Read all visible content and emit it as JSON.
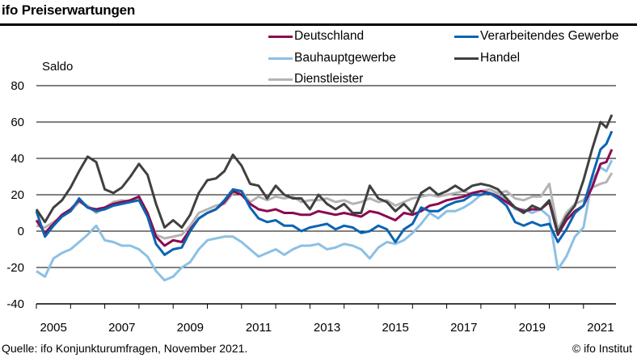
{
  "title": "ifo Preiserwartungen",
  "source": "Quelle: ifo Konjunkturumfragen, November 2021.",
  "copyright": "© ifo Institut",
  "chart_data": {
    "type": "line",
    "title": "ifo Preiserwartungen",
    "ylabel": "Saldo",
    "xlabel": "",
    "ylim": [
      -40,
      80
    ],
    "xlim": [
      2005.0,
      2021.9
    ],
    "yticks": [
      -40,
      -20,
      0,
      20,
      40,
      60,
      80
    ],
    "xtick_labels": [
      "2005",
      "2007",
      "2009",
      "2011",
      "2013",
      "2015",
      "2017",
      "2019",
      "2021"
    ],
    "grid": "horizontal",
    "legend_position": "top-right",
    "x": [
      2005.0,
      2005.25,
      2005.5,
      2005.75,
      2006.0,
      2006.25,
      2006.5,
      2006.75,
      2007.0,
      2007.25,
      2007.5,
      2007.75,
      2008.0,
      2008.25,
      2008.5,
      2008.75,
      2009.0,
      2009.25,
      2009.5,
      2009.75,
      2010.0,
      2010.25,
      2010.5,
      2010.75,
      2011.0,
      2011.25,
      2011.5,
      2011.75,
      2012.0,
      2012.25,
      2012.5,
      2012.75,
      2013.0,
      2013.25,
      2013.5,
      2013.75,
      2014.0,
      2014.25,
      2014.5,
      2014.75,
      2015.0,
      2015.25,
      2015.5,
      2015.75,
      2016.0,
      2016.25,
      2016.5,
      2016.75,
      2017.0,
      2017.25,
      2017.5,
      2017.75,
      2018.0,
      2018.25,
      2018.5,
      2018.75,
      2019.0,
      2019.25,
      2019.5,
      2019.75,
      2020.0,
      2020.25,
      2020.5,
      2020.75,
      2021.0,
      2021.25,
      2021.5,
      2021.67,
      2021.83
    ],
    "series": [
      {
        "name": "Deutschland",
        "color": "#8b0a50",
        "values": [
          6,
          -1,
          4,
          9,
          12,
          17,
          13,
          12,
          13,
          15,
          16,
          17,
          19,
          10,
          -3,
          -8,
          -5,
          -6,
          1,
          7,
          10,
          12,
          16,
          22,
          20,
          15,
          12,
          11,
          12,
          10,
          10,
          9,
          9,
          11,
          10,
          9,
          10,
          9,
          8,
          11,
          10,
          8,
          6,
          10,
          9,
          11,
          14,
          15,
          17,
          18,
          19,
          21,
          22,
          21,
          19,
          16,
          13,
          11,
          12,
          12,
          16,
          -2,
          6,
          11,
          14,
          24,
          37,
          38,
          45
        ]
      },
      {
        "name": "Verarbeitendes Gewerbe",
        "color": "#0a64b4",
        "values": [
          11,
          -3,
          3,
          8,
          11,
          18,
          13,
          11,
          12,
          14,
          15,
          16,
          17,
          8,
          -7,
          -13,
          -10,
          -9,
          0,
          7,
          10,
          12,
          17,
          23,
          22,
          13,
          7,
          5,
          6,
          3,
          3,
          0,
          2,
          3,
          4,
          1,
          3,
          2,
          -1,
          0,
          3,
          1,
          -6,
          1,
          4,
          13,
          11,
          11,
          14,
          16,
          17,
          20,
          20,
          21,
          18,
          14,
          5,
          3,
          5,
          3,
          4,
          -6,
          1,
          10,
          14,
          30,
          45,
          48,
          55
        ]
      },
      {
        "name": "Bauhauptgewerbe",
        "color": "#8cc0e4",
        "values": [
          -22,
          -25,
          -15,
          -12,
          -10,
          -6,
          -2,
          3,
          -5,
          -6,
          -8,
          -8,
          -10,
          -14,
          -22,
          -27,
          -25,
          -20,
          -17,
          -10,
          -5,
          -4,
          -3,
          -3,
          -6,
          -10,
          -14,
          -12,
          -10,
          -13,
          -10,
          -8,
          -8,
          -7,
          -10,
          -9,
          -7,
          -8,
          -10,
          -15,
          -9,
          -6,
          -7,
          -5,
          -1,
          4,
          10,
          7,
          11,
          11,
          13,
          16,
          20,
          21,
          20,
          17,
          12,
          12,
          10,
          12,
          8,
          -21,
          -14,
          -3,
          2,
          28,
          35,
          33,
          39
        ]
      },
      {
        "name": "Handel",
        "color": "#404040",
        "values": [
          12,
          5,
          13,
          17,
          24,
          33,
          41,
          38,
          23,
          21,
          24,
          30,
          37,
          31,
          15,
          2,
          6,
          2,
          9,
          21,
          28,
          29,
          33,
          42,
          36,
          26,
          25,
          18,
          25,
          20,
          18,
          18,
          12,
          20,
          15,
          12,
          15,
          10,
          10,
          25,
          18,
          16,
          11,
          15,
          10,
          21,
          24,
          20,
          22,
          25,
          22,
          25,
          26,
          25,
          23,
          18,
          13,
          10,
          14,
          12,
          17,
          -1,
          8,
          14,
          28,
          45,
          60,
          57,
          64
        ]
      },
      {
        "name": "Dienstleister",
        "color": "#b4b4b4",
        "values": [
          3,
          2,
          5,
          8,
          11,
          16,
          14,
          10,
          13,
          16,
          17,
          16,
          19,
          10,
          -2,
          -4,
          -3,
          -2,
          3,
          10,
          12,
          14,
          15,
          21,
          22,
          16,
          19,
          17,
          19,
          18,
          19,
          16,
          17,
          17,
          18,
          16,
          17,
          15,
          16,
          18,
          16,
          17,
          14,
          16,
          18,
          19,
          20,
          19,
          20,
          21,
          22,
          20,
          22,
          23,
          21,
          22,
          18,
          17,
          19,
          19,
          26,
          1,
          10,
          15,
          17,
          24,
          26,
          27,
          32
        ]
      }
    ]
  },
  "legend": [
    {
      "label": "Deutschland",
      "color": "#8b0a50"
    },
    {
      "label": "Verarbeitendes Gewerbe",
      "color": "#0a64b4"
    },
    {
      "label": "Bauhauptgewerbe",
      "color": "#8cc0e4"
    },
    {
      "label": "Handel",
      "color": "#404040"
    },
    {
      "label": "Dienstleister",
      "color": "#b4b4b4"
    }
  ]
}
